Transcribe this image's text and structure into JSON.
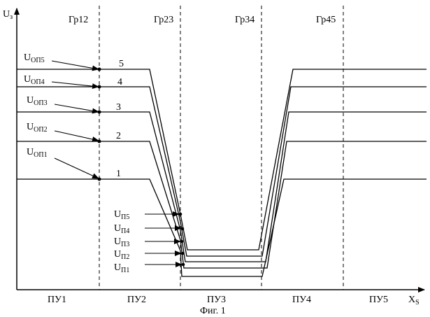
{
  "figure": {
    "caption": "Фиг. 1",
    "axis": {
      "y_label": "U",
      "y_sub": "з",
      "x_label": "X",
      "x_sub": "S"
    },
    "boundaries": [
      "Гр12",
      "Гр23",
      "Гр34",
      "Гр45"
    ],
    "zones": [
      "ПУ1",
      "ПУ2",
      "ПУ3",
      "ПУ4",
      "ПУ5"
    ],
    "curve_numbers": [
      "1",
      "2",
      "3",
      "4",
      "5"
    ],
    "reference_labels": [
      {
        "main": "U",
        "sub": "ОП1"
      },
      {
        "main": "U",
        "sub": "ОП2"
      },
      {
        "main": "U",
        "sub": "ОП3"
      },
      {
        "main": "U",
        "sub": "ОП4"
      },
      {
        "main": "U",
        "sub": "ОП5"
      }
    ],
    "crossing_labels": [
      {
        "main": "U",
        "sub": "П1"
      },
      {
        "main": "U",
        "sub": "П2"
      },
      {
        "main": "U",
        "sub": "П3"
      },
      {
        "main": "U",
        "sub": "П4"
      },
      {
        "main": "U",
        "sub": "П5"
      }
    ]
  }
}
